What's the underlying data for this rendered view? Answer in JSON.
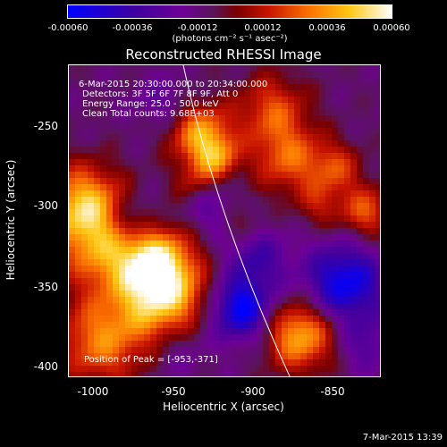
{
  "colorbar": {
    "ticks": [
      "-0.00060",
      "-0.00036",
      "-0.00012",
      "0.00012",
      "0.00036",
      "0.00060"
    ],
    "unit_label": "(photons cm⁻² s⁻¹ asec⁻²)"
  },
  "title": "Reconstructed RHESSI Image",
  "info": {
    "time_range": "6-Mar-2015 20:30:00.000 to 20:34:00.000",
    "detectors": "Detectors: 3F 5F 6F 7F 8F 9F, Att 0",
    "energy": "Energy Range: 25.0 - 50.0 keV",
    "clean": "Clean     Total counts: 9.68E+03",
    "peak": "Position of Peak = [-953,-371]"
  },
  "axes": {
    "xlabel": "Heliocentric X (arcsec)",
    "ylabel": "Heliocentric Y (arcsec)",
    "xticks": [
      "-1000",
      "-950",
      "-900",
      "-850"
    ],
    "yticks": [
      "-250",
      "-300",
      "-350",
      "-400"
    ]
  },
  "timestamp": "7-Mar-2015 13:39"
}
